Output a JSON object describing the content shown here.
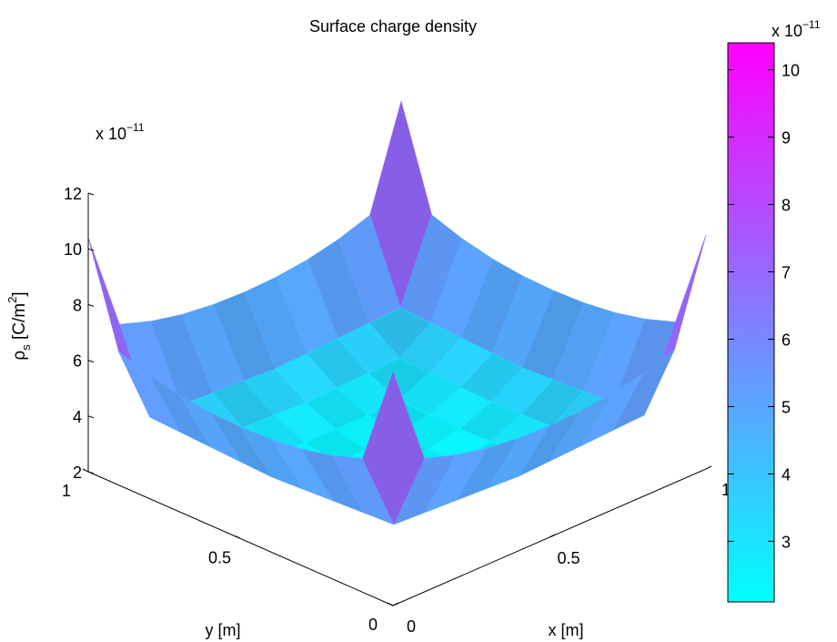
{
  "chart_data": {
    "type": "surface3d",
    "title": "Surface charge density",
    "xlabel": "x [m]",
    "ylabel": "y [m]",
    "zlabel_main": "ρ",
    "zlabel_sub": "s",
    "zlabel_unit_open": " [C/m",
    "zlabel_unit_sup": "2",
    "zlabel_unit_close": "]",
    "z_multiplier_base": "x 10",
    "z_multiplier_exp": "−11",
    "xlim": [
      0,
      1
    ],
    "ylim": [
      0,
      1
    ],
    "zlim": [
      2,
      12
    ],
    "x_ticks": [
      "0",
      "0.5",
      "1"
    ],
    "y_ticks": [
      "0",
      "0.5",
      "1"
    ],
    "z_ticks": [
      "2",
      "4",
      "6",
      "8",
      "10",
      "12"
    ],
    "grid": "off",
    "colormap": "cool",
    "colormap_colors": [
      "#00ffff",
      "#ff00ff"
    ],
    "color_range": [
      2.1,
      10.4
    ],
    "colorbar": {
      "placement": "right",
      "ticks": [
        "3",
        "4",
        "5",
        "6",
        "7",
        "8",
        "9",
        "10"
      ],
      "multiplier_base": "x 10",
      "multiplier_exp": "−11"
    },
    "grid_size": 11,
    "surface_description": "Values are lowest (about 2.2) at the centre of the plate and increase toward the edges (about 6 to 7.3), with sharp spikes at the four corners (about 10.4).",
    "z_corner": 10.4,
    "z_edge_center": 6.0,
    "z_edge_near_corner": 7.3,
    "z_center": 2.2
  }
}
